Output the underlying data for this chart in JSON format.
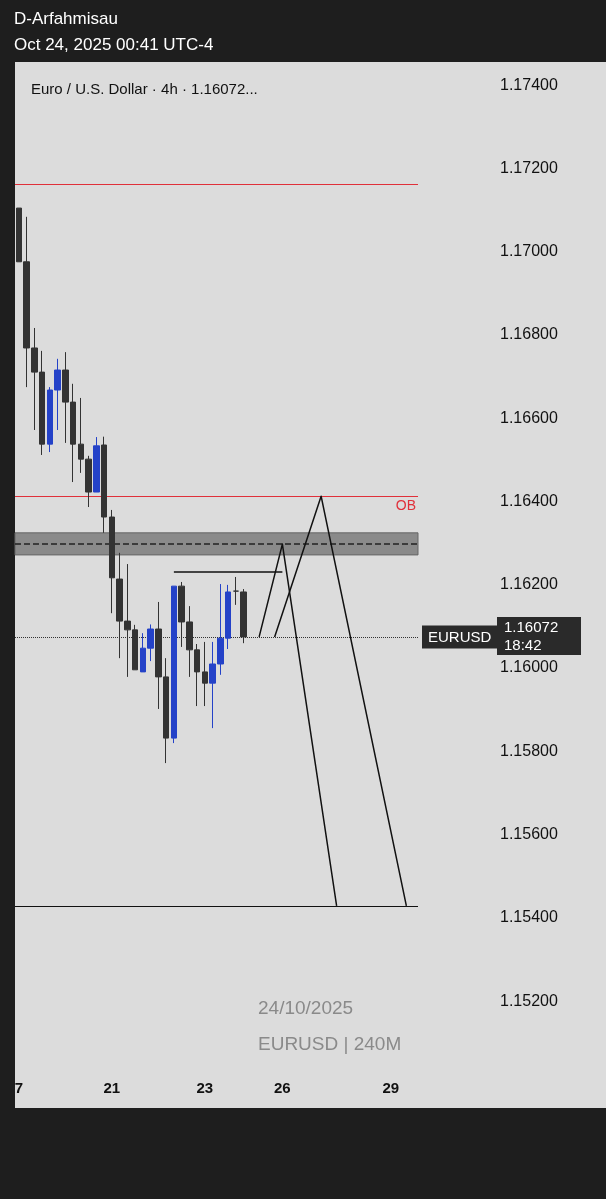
{
  "chart_data": {
    "type": "candlestick",
    "title": "Euro / U.S. Dollar · 4h · 1.16072...",
    "subtitle": "Oct 24, 2025 00:41 UTC-4",
    "annotations": [
      "D-Arfahmisau",
      "24/10/2025",
      "EURUSD | 240M",
      "1.16072",
      "18:42"
    ],
    "categories": [
      "7",
      null,
      null,
      null,
      null,
      null,
      null,
      null,
      null,
      null,
      null,
      null,
      "21",
      null,
      null,
      null,
      null,
      null,
      null,
      null,
      null,
      null,
      null,
      null,
      "23",
      null,
      null,
      null,
      null,
      null,
      null,
      null,
      null,
      null,
      "26",
      null,
      null,
      null,
      null,
      null,
      null,
      null,
      null,
      null,
      null,
      null,
      null,
      null,
      "29",
      null,
      null,
      null
    ],
    "ohlc": [
      [
        1.17102,
        1.17102,
        1.16973,
        1.16973
      ],
      [
        1.16973,
        1.17081,
        1.16672,
        1.16766
      ],
      [
        1.16766,
        1.16814,
        1.16569,
        1.16708
      ],
      [
        1.16708,
        1.16759,
        1.16509,
        1.16535
      ],
      [
        1.16535,
        1.16672,
        1.16516,
        1.16665
      ],
      [
        1.16665,
        1.1674,
        1.16569,
        1.16713
      ],
      [
        1.16713,
        1.16756,
        1.16538,
        1.16636
      ],
      [
        1.16636,
        1.1668,
        1.16444,
        1.16535
      ],
      [
        1.16535,
        1.16646,
        1.16466,
        1.16499
      ],
      [
        1.16499,
        1.16507,
        1.16384,
        1.1642
      ],
      [
        1.1642,
        1.16552,
        1.1642,
        1.16531
      ],
      [
        1.16533,
        1.16553,
        1.16322,
        1.1636
      ],
      [
        1.1636,
        1.16377,
        1.16129,
        1.16214
      ],
      [
        1.16211,
        1.16274,
        1.16021,
        1.1611
      ],
      [
        1.1611,
        1.16247,
        1.15976,
        1.16089
      ],
      [
        1.16089,
        1.16101,
        1.15993,
        1.15993
      ],
      [
        1.15988,
        1.16081,
        1.15988,
        1.16045
      ],
      [
        1.16045,
        1.16102,
        1.16014,
        1.16091
      ],
      [
        1.16091,
        1.16156,
        1.15899,
        1.15976
      ],
      [
        1.15976,
        1.16021,
        1.15769,
        1.15829
      ],
      [
        1.15829,
        1.16194,
        1.15817,
        1.16194
      ],
      [
        1.16194,
        1.16204,
        1.16048,
        1.16108
      ],
      [
        1.16108,
        1.16146,
        1.15976,
        1.16041
      ],
      [
        1.16041,
        1.16055,
        1.15906,
        1.15988
      ],
      [
        1.15988,
        1.1606,
        1.15906,
        1.15961
      ],
      [
        1.15961,
        1.1606,
        1.15853,
        1.16007
      ],
      [
        1.16007,
        1.16199,
        1.15981,
        1.16069
      ],
      [
        1.16069,
        1.16197,
        1.16043,
        1.1618
      ],
      [
        1.16182,
        1.16216,
        1.16149,
        1.16182
      ],
      [
        1.1618,
        1.16187,
        1.16057,
        1.16072
      ],
      null,
      null,
      null,
      null,
      null,
      null,
      null,
      null,
      null,
      null,
      null,
      null,
      null,
      null,
      null,
      null,
      null,
      null,
      null,
      null,
      null,
      null
    ],
    "colors": [
      "#333333",
      "#333333",
      "#333333",
      "#333333",
      "#2442c8",
      "#2442c8",
      "#333333",
      "#333333",
      "#333333",
      "#333333",
      "#2442c8",
      "#333333",
      "#333333",
      "#333333",
      "#333333",
      "#333333",
      "#2442c8",
      "#2442c8",
      "#333333",
      "#333333",
      "#2442c8",
      "#333333",
      "#333333",
      "#333333",
      "#333333",
      "#2442c8",
      "#2442c8",
      "#2442c8",
      "#333333",
      "#333333",
      null,
      null,
      null,
      null,
      null,
      null,
      null,
      null,
      null,
      null,
      null,
      null,
      null,
      null,
      null,
      null,
      null,
      null,
      null,
      null,
      null,
      null
    ],
    "series": [
      {
        "type": "line",
        "color": "#111111",
        "values": [
          null,
          null,
          null,
          null,
          null,
          null,
          null,
          null,
          null,
          null,
          null,
          null,
          null,
          null,
          null,
          null,
          null,
          null,
          null,
          null,
          1.16228,
          null,
          null,
          null,
          null,
          null,
          null,
          null,
          null,
          null,
          null,
          null,
          null,
          null,
          1.16228,
          null,
          null,
          null,
          null,
          null,
          null,
          null,
          null,
          null,
          null,
          null,
          null,
          null,
          null,
          null,
          null,
          null
        ]
      },
      {
        "type": "line",
        "color": "#111111",
        "values": [
          null,
          null,
          null,
          null,
          null,
          null,
          null,
          null,
          null,
          null,
          null,
          null,
          null,
          null,
          null,
          null,
          null,
          null,
          null,
          null,
          null,
          null,
          null,
          null,
          null,
          null,
          null,
          null,
          null,
          null,
          null,
          1.16072,
          null,
          null,
          1.16295,
          null,
          null,
          null,
          null,
          null,
          null,
          1.15426,
          null,
          null,
          null,
          null,
          null,
          null,
          null,
          null,
          null,
          null
        ]
      },
      {
        "type": "line",
        "color": "#111111",
        "values": [
          null,
          null,
          null,
          null,
          null,
          null,
          null,
          null,
          null,
          null,
          null,
          null,
          null,
          null,
          null,
          null,
          null,
          null,
          null,
          null,
          null,
          null,
          null,
          null,
          null,
          null,
          null,
          null,
          null,
          null,
          null,
          null,
          null,
          1.16072,
          null,
          null,
          null,
          null,
          null,
          1.1641,
          null,
          null,
          null,
          null,
          null,
          null,
          null,
          null,
          null,
          null,
          1.15426,
          null
        ]
      }
    ],
    "ref_lines": [
      {
        "axis": "y",
        "value": 1.1641,
        "label": "OB",
        "color": "#e0303a",
        "line_style": "solid"
      },
      {
        "axis": "y",
        "value": 1.1716,
        "label": null,
        "color": "#e0303a",
        "line_style": "solid"
      },
      {
        "axis": "y",
        "value": 1.15426,
        "label": null,
        "color": "#111111",
        "line_style": "solid"
      },
      {
        "axis": "y",
        "value": 1.16295,
        "label": null,
        "color": "#222222",
        "line_style": "dashed"
      },
      {
        "axis": "y",
        "value": 1.16072,
        "label": "EURUSD",
        "color": "#333333",
        "line_style": "dotted"
      }
    ],
    "bands": [
      {
        "axis": "y",
        "from": 1.16269,
        "to": 1.16322,
        "label": null,
        "color": "#8a8a8a"
      }
    ],
    "ylim": [
      1.152,
      1.174
    ],
    "yticks": [
      {
        "value": 1.152,
        "label": "1.15200"
      },
      {
        "value": 1.154,
        "label": "1.15400"
      },
      {
        "value": 1.156,
        "label": "1.15600"
      },
      {
        "value": 1.158,
        "label": "1.15800"
      },
      {
        "value": 1.16,
        "label": "1.16000"
      },
      {
        "value": 1.162,
        "label": "1.16200"
      },
      {
        "value": 1.164,
        "label": "1.16400"
      },
      {
        "value": 1.166,
        "label": "1.16600"
      },
      {
        "value": 1.168,
        "label": "1.16800"
      },
      {
        "value": 1.17,
        "label": "1.17000"
      },
      {
        "value": 1.172,
        "label": "1.17200"
      },
      {
        "value": 1.174,
        "label": "1.17400"
      }
    ]
  }
}
